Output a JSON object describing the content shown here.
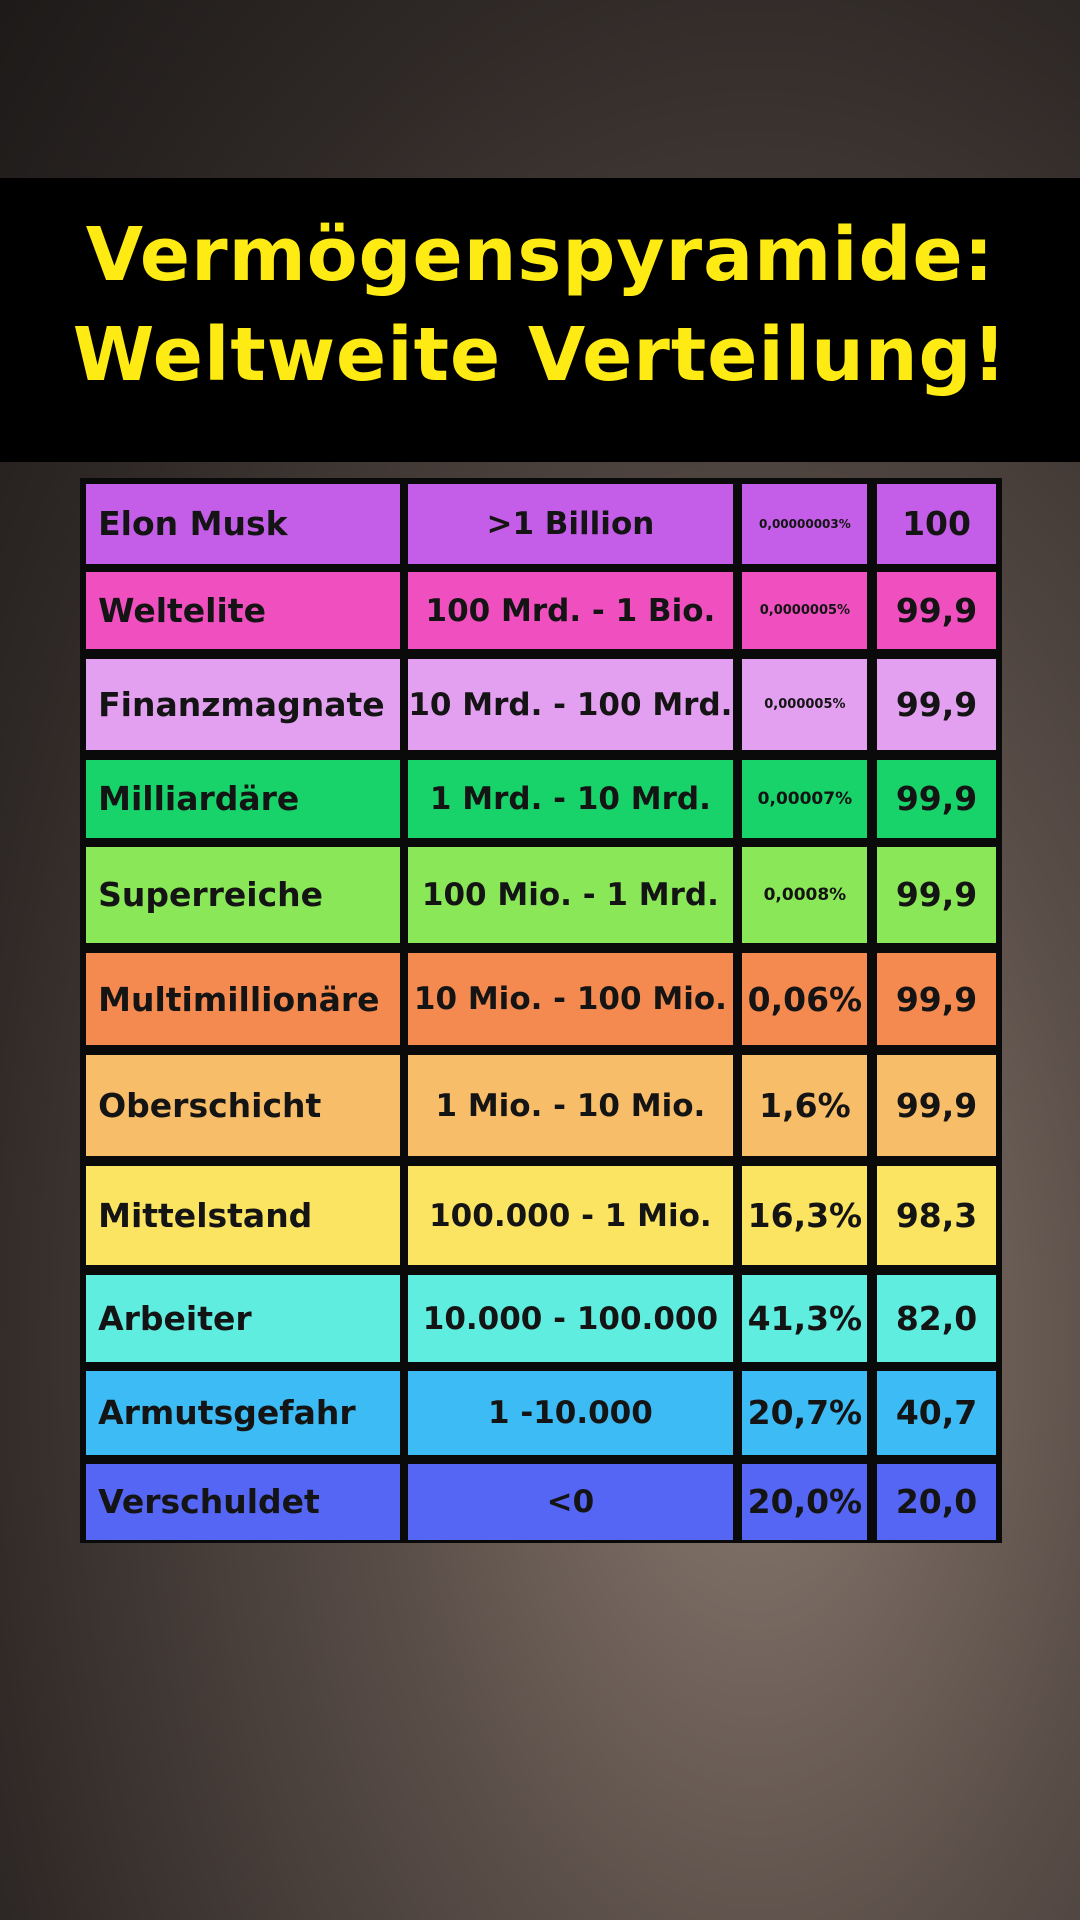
{
  "header": {
    "title_lines": [
      "Vermögenspyramide:",
      "Weltweite Verteilung!"
    ]
  },
  "table": {
    "rows": [
      [
        "Elon Musk",
        ">1 Billion",
        "0,00000003%",
        "100"
      ],
      [
        "Weltelite",
        "100 Mrd. - 1 Bio.",
        "0,0000005%",
        "99,9"
      ],
      [
        "Finanzmagnate",
        "10 Mrd. - 100 Mrd.",
        "0,000005%",
        "99,9"
      ],
      [
        "Milliardäre",
        "1 Mrd. - 10 Mrd.",
        "0,00007%",
        "99,9"
      ],
      [
        "Superreiche",
        "100 Mio. - 1 Mrd.",
        "0,0008%",
        "99,9"
      ],
      [
        "Multimillionäre",
        "10 Mio. - 100 Mio.",
        "0,06%",
        "99,9"
      ],
      [
        "Oberschicht",
        "1 Mio. - 10 Mio.",
        "1,6%",
        "99,9"
      ],
      [
        "Mittelstand",
        "100.000 - 1 Mio.",
        "16,3%",
        "98,3"
      ],
      [
        "Arbeiter",
        "10.000 - 100.000",
        "41,3%",
        "82,0"
      ],
      [
        "Armutsgefahr",
        "1 -10.000",
        "20,7%",
        "40,7"
      ],
      [
        "Verschuldet",
        "<0",
        "20,0%",
        "20,0"
      ]
    ]
  }
}
